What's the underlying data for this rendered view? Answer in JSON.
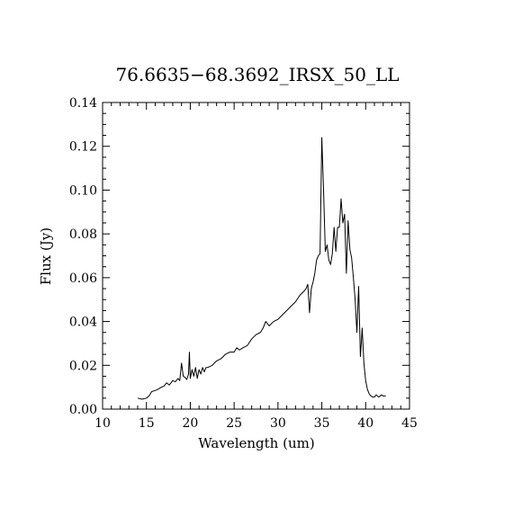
{
  "chart_data": {
    "type": "line",
    "title": "76.6635−68.3692_IRSX_50_LL",
    "xlabel": "Wavelength (um)",
    "ylabel": "Flux (Jy)",
    "xlim": [
      10,
      45
    ],
    "ylim": [
      0.0,
      0.14
    ],
    "grid": false,
    "x_ticks": [
      "10",
      "15",
      "20",
      "25",
      "30",
      "35",
      "40",
      "45"
    ],
    "y_ticks": [
      "0.00",
      "0.02",
      "0.04",
      "0.06",
      "0.08",
      "0.10",
      "0.12",
      "0.14"
    ],
    "series": [
      {
        "color": "#000000",
        "x": [
          14.0,
          14.5,
          15.0,
          15.3,
          15.6,
          16.0,
          16.3,
          16.7,
          17.0,
          17.3,
          17.6,
          18.0,
          18.3,
          18.6,
          18.8,
          19.0,
          19.2,
          19.4,
          19.6,
          19.8,
          19.9,
          20.0,
          20.2,
          20.4,
          20.6,
          20.8,
          21.0,
          21.2,
          21.4,
          21.6,
          21.8,
          22.0,
          22.5,
          23.0,
          23.5,
          24.0,
          24.5,
          25.0,
          25.3,
          25.6,
          26.0,
          26.5,
          27.0,
          27.5,
          28.0,
          28.3,
          28.6,
          29.0,
          29.5,
          30.0,
          30.5,
          31.0,
          31.5,
          32.0,
          32.5,
          33.0,
          33.2,
          33.4,
          33.6,
          33.8,
          34.0,
          34.2,
          34.4,
          34.6,
          34.8,
          35.0,
          35.2,
          35.4,
          35.6,
          35.8,
          36.0,
          36.2,
          36.4,
          36.6,
          36.8,
          37.0,
          37.2,
          37.4,
          37.6,
          37.8,
          38.0,
          38.2,
          38.4,
          38.6,
          38.8,
          39.0,
          39.2,
          39.4,
          39.5,
          39.6,
          39.8,
          40.0,
          40.2,
          40.4,
          40.6,
          40.8,
          41.0,
          41.2,
          41.5,
          41.8,
          42.0,
          42.3
        ],
        "y": [
          0.005,
          0.0045,
          0.005,
          0.006,
          0.008,
          0.0085,
          0.009,
          0.01,
          0.0105,
          0.012,
          0.011,
          0.013,
          0.0125,
          0.014,
          0.013,
          0.021,
          0.015,
          0.0145,
          0.0135,
          0.016,
          0.026,
          0.014,
          0.018,
          0.015,
          0.019,
          0.014,
          0.018,
          0.016,
          0.019,
          0.017,
          0.019,
          0.019,
          0.02,
          0.022,
          0.023,
          0.025,
          0.026,
          0.026,
          0.028,
          0.027,
          0.028,
          0.029,
          0.032,
          0.034,
          0.035,
          0.037,
          0.04,
          0.038,
          0.04,
          0.041,
          0.043,
          0.045,
          0.047,
          0.049,
          0.052,
          0.054,
          0.055,
          0.057,
          0.044,
          0.055,
          0.058,
          0.062,
          0.068,
          0.07,
          0.071,
          0.124,
          0.1,
          0.072,
          0.075,
          0.068,
          0.066,
          0.071,
          0.083,
          0.072,
          0.083,
          0.083,
          0.096,
          0.085,
          0.089,
          0.062,
          0.086,
          0.073,
          0.069,
          0.06,
          0.05,
          0.035,
          0.056,
          0.024,
          0.03,
          0.037,
          0.021,
          0.013,
          0.009,
          0.007,
          0.006,
          0.0055,
          0.0055,
          0.0065,
          0.0055,
          0.0065,
          0.006,
          0.006
        ]
      }
    ]
  }
}
